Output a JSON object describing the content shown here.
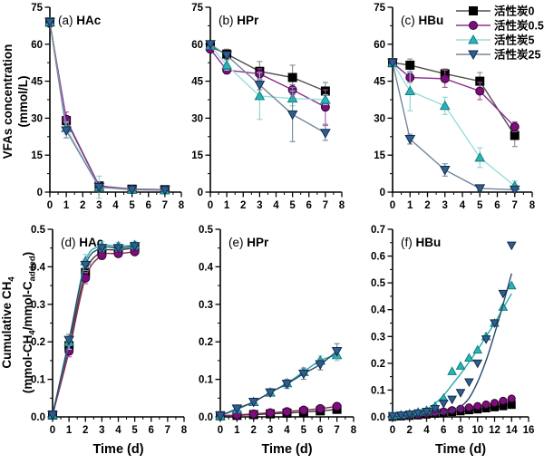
{
  "figure": {
    "bg": "#ffffff",
    "row1_ylabel_line1": "VFAs concentration",
    "row1_ylabel_line2": "(mmol/L)",
    "row2_ylabel": {
      "l1_main": "Cumulative CH",
      "l1_sub": "4",
      "l2_p1": "(mmol-CH",
      "l2_s1": "4",
      "l2_p2": "/mmol-C",
      "l2_s2": "added",
      "l2_p3": ")"
    },
    "xlabel": "Time (d)"
  },
  "legend": {
    "position": "top-right-panel-c",
    "items": [
      "活性炭0",
      "活性炭0.5",
      "活性炭5",
      "活性炭25"
    ]
  },
  "series_meta": [
    {
      "key": "ac0",
      "name": "活性炭0",
      "marker": "square",
      "fill": "#000000",
      "edge": "#000000",
      "line_row1": "#4d4d4d",
      "line_row2": "#3a3a3a",
      "err_color": "#8a8a8a"
    },
    {
      "key": "ac0_5",
      "name": "活性炭0.5",
      "marker": "circle",
      "fill": "#7d0c7d",
      "edge": "#2e052e",
      "line_row1": "#8b3090",
      "line_row2": "#8b2550",
      "err_color": "#a8549d"
    },
    {
      "key": "ac5",
      "name": "活性炭5",
      "marker": "triangle-up",
      "fill": "#29b4b8",
      "edge": "#117d80",
      "line_row1": "#9bdcdc",
      "line_row2": "#2aa9ad",
      "err_color": "#8fd0d0"
    },
    {
      "key": "ac25",
      "name": "活性炭25",
      "marker": "triangle-down",
      "fill": "#2d5f92",
      "edge": "#122c47",
      "line_row1": "#74879c",
      "line_row2": "#28496b",
      "err_color": "#74879c"
    }
  ],
  "chart_data": [
    {
      "id": "a",
      "row": 1,
      "type": "line",
      "smooth": false,
      "msize": 5,
      "label_prefix": "(a)",
      "label_name": "HAc",
      "xlabel": "",
      "xlim": [
        0,
        8
      ],
      "ylim": [
        0,
        75
      ],
      "xticks": [
        0,
        1,
        2,
        3,
        4,
        5,
        6,
        7,
        8
      ],
      "xtick_labels": [
        "0",
        "1",
        "2",
        "3",
        "4",
        "5",
        "6",
        "7",
        "8"
      ],
      "yticks": [
        0,
        15,
        30,
        45,
        60,
        75
      ],
      "ytick_labels": [
        "0",
        "15",
        "30",
        "45",
        "60",
        "75"
      ],
      "x": [
        0,
        1,
        3,
        5,
        7
      ],
      "series": [
        {
          "name": "活性炭0",
          "values": [
            69,
            29,
            2.5,
            1.2,
            1
          ],
          "err": [
            1,
            2,
            0.8,
            0.5,
            0.5
          ]
        },
        {
          "name": "活性炭0.5",
          "values": [
            68.5,
            29.5,
            2.5,
            1.2,
            1
          ],
          "err": [
            1,
            3,
            0.8,
            0.5,
            0.5
          ]
        },
        {
          "name": "活性炭5",
          "values": [
            69,
            26,
            2,
            1,
            0.8
          ],
          "err": [
            1,
            2.5,
            4.5,
            0.8,
            0.5
          ]
        },
        {
          "name": "活性炭25",
          "values": [
            69,
            25,
            2,
            1,
            0.8
          ],
          "err": [
            1,
            3,
            1,
            0.8,
            0.5
          ]
        }
      ]
    },
    {
      "id": "b",
      "row": 1,
      "type": "line",
      "smooth": false,
      "msize": 5,
      "label_prefix": "(b)",
      "label_name": "HPr",
      "xlabel": "",
      "xlim": [
        0,
        8
      ],
      "ylim": [
        0,
        75
      ],
      "xticks": [
        0,
        1,
        2,
        3,
        4,
        5,
        6,
        7,
        8
      ],
      "xtick_labels": [
        "0",
        "1",
        "2",
        "3",
        "4",
        "5",
        "6",
        "7",
        "8"
      ],
      "yticks": [
        0,
        15,
        30,
        45,
        60,
        75
      ],
      "ytick_labels": [
        "0",
        "15",
        "30",
        "45",
        "60",
        "75"
      ],
      "x": [
        0,
        1,
        3,
        5,
        7
      ],
      "series": [
        {
          "name": "活性炭0",
          "values": [
            59,
            56,
            49,
            46.5,
            41
          ],
          "err": [
            1,
            2,
            4,
            5,
            3.5
          ]
        },
        {
          "name": "活性炭0.5",
          "values": [
            58,
            49.5,
            48,
            41.5,
            34.5
          ],
          "err": [
            1,
            1.5,
            2,
            2,
            7
          ]
        },
        {
          "name": "活性炭5",
          "values": [
            59.5,
            51.5,
            39,
            38,
            37.5
          ],
          "err": [
            1,
            2,
            9.5,
            3,
            2
          ]
        },
        {
          "name": "活性炭25",
          "values": [
            60,
            55.5,
            43.5,
            31.5,
            24
          ],
          "err": [
            1,
            1.5,
            2,
            11,
            3
          ]
        }
      ]
    },
    {
      "id": "c",
      "row": 1,
      "type": "line",
      "smooth": false,
      "msize": 5,
      "label_prefix": "(c)",
      "label_name": "HBu",
      "xlabel": "",
      "xlim": [
        0,
        8
      ],
      "ylim": [
        0,
        75
      ],
      "xticks": [
        0,
        1,
        2,
        3,
        4,
        5,
        6,
        7,
        8
      ],
      "xtick_labels": [
        "0",
        "1",
        "2",
        "3",
        "4",
        "5",
        "6",
        "7",
        "8"
      ],
      "yticks": [
        0,
        15,
        30,
        45,
        60,
        75
      ],
      "ytick_labels": [
        "0",
        "15",
        "30",
        "45",
        "60",
        "75"
      ],
      "x": [
        0,
        1,
        3,
        5,
        7
      ],
      "series": [
        {
          "name": "活性炭0",
          "values": [
            52.5,
            51.5,
            48,
            45,
            23
          ],
          "err": [
            0.5,
            2.5,
            2,
            3.5,
            4.5
          ]
        },
        {
          "name": "活性炭0.5",
          "values": [
            52.5,
            46.5,
            46,
            41,
            26.5
          ],
          "err": [
            0.5,
            2,
            3.5,
            3.5,
            2
          ]
        },
        {
          "name": "活性炭5",
          "values": [
            52.5,
            41,
            35,
            14,
            2.5
          ],
          "err": [
            0.5,
            8,
            3.5,
            4,
            2
          ]
        },
        {
          "name": "活性炭25",
          "values": [
            52.5,
            21.5,
            9,
            1.5,
            1
          ],
          "err": [
            0.5,
            2,
            2.5,
            1,
            0.5
          ]
        }
      ]
    },
    {
      "id": "d",
      "row": 2,
      "type": "line",
      "smooth": true,
      "msize": 5,
      "label_prefix": "(d)",
      "label_name": "HAc",
      "xlabel": "Time (d)",
      "xlim": [
        0,
        8
      ],
      "ylim": [
        0,
        0.5
      ],
      "xticks": [
        0,
        1,
        2,
        3,
        4,
        5,
        6,
        7,
        8
      ],
      "xtick_labels": [
        "0",
        "1",
        "2",
        "3",
        "4",
        "5",
        "6",
        "7",
        "8"
      ],
      "yticks": [
        0,
        0.1,
        0.2,
        0.3,
        0.4,
        0.5
      ],
      "ytick_labels": [
        "0.0",
        "0.1",
        "0.2",
        "0.3",
        "0.4",
        "0.5"
      ],
      "x": [
        0,
        1,
        2,
        3,
        4,
        5
      ],
      "series": [
        {
          "name": "活性炭0",
          "values": [
            0.005,
            0.19,
            0.385,
            0.44,
            0.445,
            0.45
          ],
          "err": [
            0,
            0.02,
            0.012,
            0.008,
            0.008,
            0.008
          ]
        },
        {
          "name": "活性炭0.5",
          "values": [
            0.005,
            0.175,
            0.37,
            0.43,
            0.435,
            0.44
          ],
          "err": [
            0,
            0.015,
            0.015,
            0.01,
            0.008,
            0.008
          ]
        },
        {
          "name": "活性炭5",
          "values": [
            0.005,
            0.2,
            0.415,
            0.455,
            0.455,
            0.458
          ],
          "err": [
            0,
            0.02,
            0.018,
            0.012,
            0.01,
            0.01
          ]
        },
        {
          "name": "活性炭25",
          "values": [
            0.005,
            0.205,
            0.405,
            0.45,
            0.45,
            0.455
          ],
          "err": [
            0,
            0.015,
            0.015,
            0.01,
            0.008,
            0.008
          ]
        }
      ]
    },
    {
      "id": "e",
      "row": 2,
      "type": "line",
      "smooth": true,
      "msize": 5,
      "label_prefix": "(e)",
      "label_name": "HPr",
      "xlabel": "Time (d)",
      "xlim": [
        0,
        8
      ],
      "ylim": [
        0,
        0.5
      ],
      "xticks": [
        0,
        1,
        2,
        3,
        4,
        5,
        6,
        7,
        8
      ],
      "xtick_labels": [
        "0",
        "1",
        "2",
        "3",
        "4",
        "5",
        "6",
        "7",
        "8"
      ],
      "yticks": [
        0,
        0.1,
        0.2,
        0.3,
        0.4,
        0.5
      ],
      "ytick_labels": [
        "0.0",
        "0.1",
        "0.2",
        "0.3",
        "0.4",
        "0.5"
      ],
      "x": [
        0,
        1,
        2,
        3,
        4,
        5,
        6,
        7
      ],
      "series": [
        {
          "name": "活性炭0",
          "values": [
            0.003,
            0.004,
            0.006,
            0.008,
            0.01,
            0.013,
            0.016,
            0.02
          ],
          "err": [
            0,
            0.003,
            0.003,
            0.003,
            0.003,
            0.003,
            0.003,
            0.004
          ]
        },
        {
          "name": "活性炭0.5",
          "values": [
            0.003,
            0.005,
            0.008,
            0.011,
            0.014,
            0.018,
            0.022,
            0.028
          ],
          "err": [
            0,
            0.003,
            0.003,
            0.004,
            0.004,
            0.004,
            0.004,
            0.005
          ]
        },
        {
          "name": "活性炭5",
          "values": [
            0.003,
            0.02,
            0.04,
            0.065,
            0.09,
            0.12,
            0.15,
            0.165
          ],
          "err": [
            0,
            0.005,
            0.006,
            0.008,
            0.008,
            0.01,
            0.012,
            0.015
          ]
        },
        {
          "name": "活性炭25",
          "values": [
            0.003,
            0.022,
            0.04,
            0.065,
            0.088,
            0.115,
            0.14,
            0.175
          ],
          "err": [
            0,
            0.008,
            0.008,
            0.01,
            0.012,
            0.015,
            0.015,
            0.02
          ]
        }
      ]
    },
    {
      "id": "f",
      "row": 2,
      "type": "line",
      "smooth": true,
      "msize": 4.5,
      "label_prefix": "(f)",
      "label_name": "HBu",
      "xlabel": "Time (d)",
      "xlim": [
        0,
        16
      ],
      "ylim": [
        0,
        0.7
      ],
      "xticks": [
        0,
        2,
        4,
        6,
        8,
        10,
        12,
        14,
        16
      ],
      "xtick_labels": [
        "0",
        "2",
        "4",
        "6",
        "8",
        "10",
        "12",
        "14",
        "16"
      ],
      "yticks": [
        0,
        0.1,
        0.2,
        0.3,
        0.4,
        0.5,
        0.6,
        0.7
      ],
      "ytick_labels": [
        "0.0",
        "0.1",
        "0.2",
        "0.3",
        "0.4",
        "0.5",
        "0.6",
        "0.7"
      ],
      "x": [
        0,
        1,
        2,
        3,
        4,
        5,
        6,
        7,
        8,
        9,
        10,
        11,
        12,
        13,
        14
      ],
      "series": [
        {
          "name": "活性炭0",
          "values": [
            0,
            0.002,
            0.004,
            0.006,
            0.009,
            0.012,
            0.015,
            0.018,
            0.021,
            0.025,
            0.028,
            0.032,
            0.036,
            0.04,
            0.045
          ]
        },
        {
          "name": "活性炭0.5",
          "values": [
            0,
            0.003,
            0.005,
            0.008,
            0.012,
            0.016,
            0.02,
            0.025,
            0.03,
            0.035,
            0.04,
            0.046,
            0.052,
            0.06,
            0.068
          ]
        },
        {
          "name": "活性炭5",
          "values": [
            0.005,
            0.008,
            0.012,
            0.018,
            0.025,
            0.04,
            0.07,
            0.17,
            0.19,
            0.22,
            0.25,
            0.3,
            0.35,
            0.41,
            0.49
          ],
          "fit": [
            [
              0,
              0.005
            ],
            [
              2,
              0.013
            ],
            [
              4,
              0.03
            ],
            [
              5,
              0.05
            ],
            [
              6,
              0.08
            ],
            [
              7,
              0.12
            ],
            [
              8,
              0.16
            ],
            [
              9,
              0.205
            ],
            [
              10,
              0.25
            ],
            [
              11,
              0.3
            ],
            [
              12,
              0.35
            ],
            [
              13,
              0.405
            ],
            [
              14,
              0.46
            ]
          ]
        },
        {
          "name": "活性炭25",
          "values": [
            0.004,
            0.006,
            0.01,
            0.014,
            0.02,
            0.03,
            0.05,
            0.065,
            0.09,
            0.13,
            0.2,
            0.29,
            0.35,
            0.46,
            0.64
          ],
          "fit": [
            [
              0,
              0.002
            ],
            [
              4,
              0.006
            ],
            [
              6,
              0.015
            ],
            [
              7,
              0.022
            ],
            [
              8,
              0.038
            ],
            [
              9,
              0.07
            ],
            [
              10,
              0.13
            ],
            [
              11,
              0.21
            ],
            [
              12,
              0.31
            ],
            [
              13,
              0.42
            ],
            [
              14,
              0.535
            ]
          ]
        }
      ]
    }
  ]
}
